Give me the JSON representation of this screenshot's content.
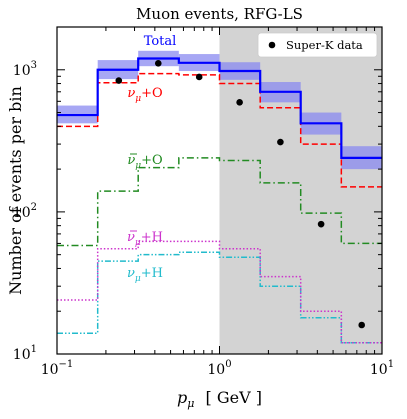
{
  "chart_data": {
    "type": "line",
    "title": "Muon events, RFG-LS",
    "xlabel": "p",
    "xlabel_sub": "μ",
    "xlabel_unit": "[ GeV ]",
    "ylabel": "Number of events per bin",
    "xscale": "log",
    "yscale": "log",
    "xlim": [
      0.1,
      10
    ],
    "ylim": [
      10,
      2000
    ],
    "x_tick_labels": [
      {
        "base": "10",
        "exp": "−1"
      },
      {
        "base": "10",
        "exp": "0"
      },
      {
        "base": "10",
        "exp": "1"
      }
    ],
    "y_tick_labels": [
      {
        "base": "10",
        "exp": "1"
      },
      {
        "base": "10",
        "exp": "2"
      },
      {
        "base": "10",
        "exp": "3"
      }
    ],
    "shaded_region": {
      "x": [
        1,
        10
      ],
      "color": "#d3d3d3"
    },
    "bin_edges": [
      0.1,
      0.178,
      0.316,
      0.562,
      1.0,
      1.78,
      3.16,
      5.62,
      10
    ],
    "series": [
      {
        "name": "Total",
        "color": "#0000ff",
        "style": "solid",
        "values": [
          480,
          1000,
          1200,
          1120,
          980,
          700,
          420,
          240
        ],
        "band_low": [
          420,
          860,
          1060,
          980,
          850,
          590,
          350,
          200
        ],
        "band_high": [
          560,
          1170,
          1360,
          1290,
          1130,
          820,
          500,
          290
        ],
        "band_color": "#8a8af0"
      },
      {
        "name": "ν_μ+O",
        "color": "#ff0000",
        "style": "dashed",
        "values": [
          400,
          810,
          940,
          920,
          800,
          540,
          300,
          150
        ]
      },
      {
        "name": "ν̄_μ+O",
        "color": "#228b22",
        "style": "dashdot",
        "values": [
          58,
          140,
          205,
          240,
          230,
          160,
          98,
          60
        ]
      },
      {
        "name": "ν̄_μ+H",
        "color": "#cc33cc",
        "style": "dotted",
        "values": [
          24,
          55,
          62,
          62,
          55,
          35,
          20,
          12
        ]
      },
      {
        "name": "ν_μ+H",
        "color": "#22bbcc",
        "style": "dashdotdot",
        "values": [
          14,
          45,
          50,
          52,
          48,
          30,
          18,
          12
        ]
      }
    ],
    "data_points": {
      "name": "Super-K data",
      "x": [
        0.24,
        0.42,
        0.75,
        1.33,
        2.37,
        4.22,
        7.5
      ],
      "y": [
        840,
        1110,
        890,
        590,
        310,
        82,
        16
      ]
    },
    "annotations": [
      {
        "text": "Total",
        "series": "Total"
      },
      {
        "base": "ν",
        "sub": "μ",
        "rest": "+O",
        "bar": false,
        "series": "ν_μ+O"
      },
      {
        "base": "ν",
        "sub": "μ",
        "rest": "+O",
        "bar": true,
        "series": "ν̄_μ+O"
      },
      {
        "base": "ν",
        "sub": "μ",
        "rest": "+H",
        "bar": true,
        "series": "ν̄_μ+H"
      },
      {
        "base": "ν",
        "sub": "μ",
        "rest": "+H",
        "bar": false,
        "series": "ν_μ+H"
      }
    ],
    "legend": {
      "position": "top-right",
      "label": "Super-K data"
    }
  }
}
